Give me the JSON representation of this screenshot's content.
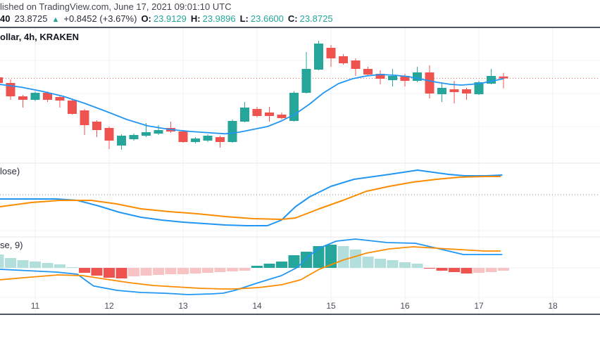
{
  "header": {
    "published_line": "lished on TradingView.com, June 17, 2021 09:01:10 UTC",
    "quote": {
      "prefix": "40",
      "last": "23.8725",
      "arrow": "▲",
      "change": "+0.8452 (+3.67%)",
      "o_label": "O:",
      "o": "23.9129",
      "h_label": "H:",
      "h": "23.9896",
      "l_label": "L:",
      "l": "23.6600",
      "c_label": "C:",
      "c": "23.8725"
    }
  },
  "chart_title": "ollar, 4h, KRAKEN",
  "panels": {
    "middle_label": "lose)",
    "bottom_label": "se, 9)"
  },
  "colors": {
    "up": "#26a69a",
    "down": "#ef5350",
    "ma_blue": "#2196f3",
    "signal_orange": "#fb8c00",
    "hist_pos": "#26a69a",
    "hist_pos_light": "#b2dfdb",
    "hist_neg": "#ef5350",
    "hist_neg_light": "#f8c3c4",
    "dotted_price": "#ef5350",
    "gray_dotted": "#8b8f9a",
    "grid": "#f0f2f7",
    "grid_h": "#f2f4f9",
    "panel_sep": "#e4e7ee",
    "axis_line": "#51555f",
    "macd_zero": "#edeff4"
  },
  "chart_data": {
    "type": "candlestick",
    "title_fragment": "ollar, 4h, KRAKEN",
    "interval": "4h",
    "exchange": "KRAKEN",
    "last_price": 23.8725,
    "x_ticks": [
      {
        "label": "11",
        "day": 11
      },
      {
        "label": "12",
        "day": 12
      },
      {
        "label": "13",
        "day": 13
      },
      {
        "label": "14",
        "day": 14
      },
      {
        "label": "15",
        "day": 15
      },
      {
        "label": "16",
        "day": 16
      },
      {
        "label": "17",
        "day": 17
      },
      {
        "label": "18",
        "day": 18
      }
    ],
    "candles": {
      "columns": [
        "day",
        "open",
        "high",
        "low",
        "close"
      ],
      "rows": [
        [
          10.5,
          23.895,
          23.94,
          23.745,
          23.775
        ],
        [
          10.667,
          23.775,
          23.85,
          23.415,
          23.49
        ],
        [
          10.833,
          23.49,
          23.52,
          23.25,
          23.415
        ],
        [
          11,
          23.415,
          23.595,
          23.385,
          23.565
        ],
        [
          11.167,
          23.565,
          23.595,
          23.37,
          23.415
        ],
        [
          11.333,
          23.475,
          23.505,
          23.25,
          23.4
        ],
        [
          11.5,
          23.4,
          23.445,
          23.1,
          23.115
        ],
        [
          11.667,
          23.19,
          23.22,
          22.665,
          22.875
        ],
        [
          11.833,
          22.95,
          22.98,
          22.62,
          22.77
        ],
        [
          12,
          22.815,
          22.845,
          22.365,
          22.545
        ],
        [
          12.167,
          22.44,
          22.68,
          22.35,
          22.65
        ],
        [
          12.333,
          22.575,
          22.695,
          22.545,
          22.665
        ],
        [
          12.5,
          22.65,
          22.92,
          22.62,
          22.725
        ],
        [
          12.667,
          22.695,
          22.875,
          22.665,
          22.77
        ],
        [
          12.833,
          22.815,
          22.95,
          22.71,
          22.74
        ],
        [
          13,
          22.74,
          22.77,
          22.5,
          22.515
        ],
        [
          13.167,
          22.515,
          22.62,
          22.485,
          22.59
        ],
        [
          13.333,
          22.545,
          22.68,
          22.515,
          22.65
        ],
        [
          13.5,
          22.62,
          22.65,
          22.395,
          22.515
        ],
        [
          13.667,
          22.515,
          22.995,
          22.5,
          22.965
        ],
        [
          13.833,
          22.95,
          23.37,
          22.935,
          23.25
        ],
        [
          14,
          23.22,
          23.265,
          23.04,
          23.07
        ],
        [
          14.167,
          23.145,
          23.265,
          22.95,
          23.07
        ],
        [
          14.333,
          23.1,
          23.145,
          22.995,
          23.025
        ],
        [
          14.5,
          22.965,
          23.595,
          22.95,
          23.565
        ],
        [
          14.667,
          23.565,
          24.435,
          23.55,
          24.075
        ],
        [
          14.833,
          24.06,
          24.675,
          24.045,
          24.615
        ],
        [
          15,
          24.525,
          24.585,
          24.12,
          24.3
        ],
        [
          15.167,
          24.345,
          24.39,
          24.165,
          24.195
        ],
        [
          15.333,
          24.255,
          24.3,
          23.925,
          24.075
        ],
        [
          15.5,
          24.075,
          24.12,
          23.925,
          23.955
        ],
        [
          15.667,
          23.97,
          24.045,
          23.745,
          23.865
        ],
        [
          15.833,
          23.835,
          24.075,
          23.7,
          23.925
        ],
        [
          16,
          23.925,
          23.97,
          23.7,
          23.82
        ],
        [
          16.167,
          23.82,
          24.12,
          23.79,
          24
        ],
        [
          16.333,
          24,
          24.15,
          23.445,
          23.55
        ],
        [
          16.5,
          23.535,
          23.79,
          23.37,
          23.67
        ],
        [
          16.667,
          23.64,
          23.82,
          23.34,
          23.58
        ],
        [
          16.833,
          23.64,
          23.67,
          23.415,
          23.55
        ],
        [
          17,
          23.535,
          23.82,
          23.52,
          23.79
        ],
        [
          17.167,
          23.76,
          24.075,
          23.745,
          23.925
        ],
        [
          17.333,
          23.9129,
          23.9896,
          23.66,
          23.8725
        ]
      ]
    },
    "ma_line": [
      [
        10.52,
        23.745
      ],
      [
        10.81,
        23.685
      ],
      [
        11.1,
        23.595
      ],
      [
        11.38,
        23.49
      ],
      [
        11.67,
        23.34
      ],
      [
        11.95,
        23.175
      ],
      [
        12.24,
        22.995
      ],
      [
        12.52,
        22.86
      ],
      [
        12.81,
        22.785
      ],
      [
        13.1,
        22.74
      ],
      [
        13.38,
        22.71
      ],
      [
        13.57,
        22.69
      ],
      [
        13.76,
        22.725
      ],
      [
        13.95,
        22.785
      ],
      [
        14.14,
        22.845
      ],
      [
        14.33,
        22.965
      ],
      [
        14.52,
        23.115
      ],
      [
        14.71,
        23.325
      ],
      [
        14.9,
        23.565
      ],
      [
        15.1,
        23.76
      ],
      [
        15.29,
        23.865
      ],
      [
        15.48,
        23.925
      ],
      [
        15.67,
        23.955
      ],
      [
        15.86,
        23.94
      ],
      [
        16.05,
        23.91
      ],
      [
        16.24,
        23.85
      ],
      [
        16.43,
        23.79
      ],
      [
        16.62,
        23.745
      ],
      [
        16.76,
        23.73
      ],
      [
        16.9,
        23.745
      ],
      [
        17.05,
        23.775
      ],
      [
        17.19,
        23.82
      ],
      [
        17.33,
        23.865
      ]
    ],
    "middle_indicator": {
      "label_fragment": "lose)",
      "scale_note": "relative 0-100 estimate, dotted reference line at 50",
      "zero_line": 50,
      "blue": [
        [
          10.52,
          44
        ],
        [
          10.9,
          44
        ],
        [
          11.29,
          44
        ],
        [
          11.57,
          42
        ],
        [
          11.86,
          34
        ],
        [
          12.14,
          25
        ],
        [
          12.43,
          18
        ],
        [
          12.71,
          14
        ],
        [
          13,
          11
        ],
        [
          13.29,
          9
        ],
        [
          13.57,
          7
        ],
        [
          13.86,
          6
        ],
        [
          14.14,
          6
        ],
        [
          14.33,
          14
        ],
        [
          14.52,
          33
        ],
        [
          14.71,
          47
        ],
        [
          15,
          62
        ],
        [
          15.31,
          72
        ],
        [
          15.79,
          79
        ],
        [
          16.17,
          85
        ],
        [
          16.59,
          79
        ],
        [
          16.81,
          77
        ],
        [
          17.1,
          77
        ],
        [
          17.31,
          78
        ]
      ],
      "orange": [
        [
          10.52,
          33
        ],
        [
          10.95,
          39
        ],
        [
          11.33,
          42
        ],
        [
          11.76,
          42
        ],
        [
          12.1,
          37
        ],
        [
          12.43,
          30
        ],
        [
          12.81,
          26
        ],
        [
          13.19,
          23
        ],
        [
          13.57,
          19
        ],
        [
          13.95,
          16
        ],
        [
          14.33,
          15
        ],
        [
          14.52,
          17
        ],
        [
          14.84,
          30
        ],
        [
          15.16,
          42
        ],
        [
          15.48,
          55
        ],
        [
          15.79,
          62
        ],
        [
          16.11,
          68
        ],
        [
          16.43,
          72
        ],
        [
          16.74,
          75
        ],
        [
          17.07,
          76
        ],
        [
          17.29,
          76
        ]
      ]
    },
    "macd": {
      "label_fragment": "se, 9)",
      "histogram": [
        [
          10.5,
          0.228
        ],
        [
          10.667,
          0.168
        ],
        [
          10.833,
          0.132
        ],
        [
          11,
          0.108
        ],
        [
          11.167,
          0.084
        ],
        [
          11.333,
          0.06
        ],
        [
          11.5,
          0.012
        ],
        [
          11.667,
          -0.084
        ],
        [
          11.833,
          -0.132
        ],
        [
          12,
          -0.168
        ],
        [
          12.167,
          -0.18
        ],
        [
          12.333,
          -0.144
        ],
        [
          12.5,
          -0.132
        ],
        [
          12.667,
          -0.12
        ],
        [
          12.833,
          -0.108
        ],
        [
          13,
          -0.108
        ],
        [
          13.167,
          -0.096
        ],
        [
          13.333,
          -0.084
        ],
        [
          13.5,
          -0.072
        ],
        [
          13.667,
          -0.06
        ],
        [
          13.833,
          -0.048
        ],
        [
          14,
          0.036
        ],
        [
          14.167,
          0.072
        ],
        [
          14.333,
          0.108
        ],
        [
          14.5,
          0.216
        ],
        [
          14.667,
          0.276
        ],
        [
          14.833,
          0.372
        ],
        [
          15,
          0.396
        ],
        [
          15.167,
          0.372
        ],
        [
          15.333,
          0.312
        ],
        [
          15.5,
          0.192
        ],
        [
          15.667,
          0.156
        ],
        [
          15.833,
          0.132
        ],
        [
          16,
          0.096
        ],
        [
          16.167,
          0.072
        ],
        [
          16.333,
          -0.012
        ],
        [
          16.5,
          -0.048
        ],
        [
          16.667,
          -0.072
        ],
        [
          16.833,
          -0.096
        ],
        [
          17,
          -0.084
        ],
        [
          17.167,
          -0.072
        ],
        [
          17.333,
          -0.048
        ]
      ],
      "macd_line": [
        [
          10.52,
          -0.024
        ],
        [
          10.9,
          -0.048
        ],
        [
          11.29,
          -0.072
        ],
        [
          11.57,
          -0.108
        ],
        [
          11.68,
          -0.21
        ],
        [
          11.79,
          -0.31
        ],
        [
          12.11,
          -0.384
        ],
        [
          12.43,
          -0.42
        ],
        [
          12.74,
          -0.432
        ],
        [
          13.07,
          -0.456
        ],
        [
          13.38,
          -0.444
        ],
        [
          13.54,
          -0.432
        ],
        [
          13.7,
          -0.384
        ],
        [
          14.02,
          -0.252
        ],
        [
          14.33,
          -0.132
        ],
        [
          14.55,
          0.012
        ],
        [
          14.69,
          0.192
        ],
        [
          14.84,
          0.336
        ],
        [
          15.07,
          0.456
        ],
        [
          15.33,
          0.492
        ],
        [
          15.76,
          0.432
        ],
        [
          16.14,
          0.42
        ],
        [
          16.43,
          0.336
        ],
        [
          16.79,
          0.228
        ],
        [
          17.07,
          0.228
        ],
        [
          17.31,
          0.228
        ]
      ],
      "signal_line": [
        [
          10.52,
          -0.204
        ],
        [
          10.84,
          -0.168
        ],
        [
          11.31,
          -0.12
        ],
        [
          11.64,
          -0.132
        ],
        [
          11.95,
          -0.192
        ],
        [
          12.27,
          -0.252
        ],
        [
          12.59,
          -0.3
        ],
        [
          12.9,
          -0.324
        ],
        [
          13.22,
          -0.348
        ],
        [
          13.54,
          -0.36
        ],
        [
          13.7,
          -0.36
        ],
        [
          14.02,
          -0.336
        ],
        [
          14.33,
          -0.288
        ],
        [
          14.59,
          -0.204
        ],
        [
          14.84,
          -0.024
        ],
        [
          15.16,
          0.132
        ],
        [
          15.48,
          0.252
        ],
        [
          15.79,
          0.324
        ],
        [
          16.11,
          0.36
        ],
        [
          16.43,
          0.336
        ],
        [
          16.74,
          0.312
        ],
        [
          17.07,
          0.288
        ],
        [
          17.29,
          0.288
        ]
      ]
    }
  }
}
